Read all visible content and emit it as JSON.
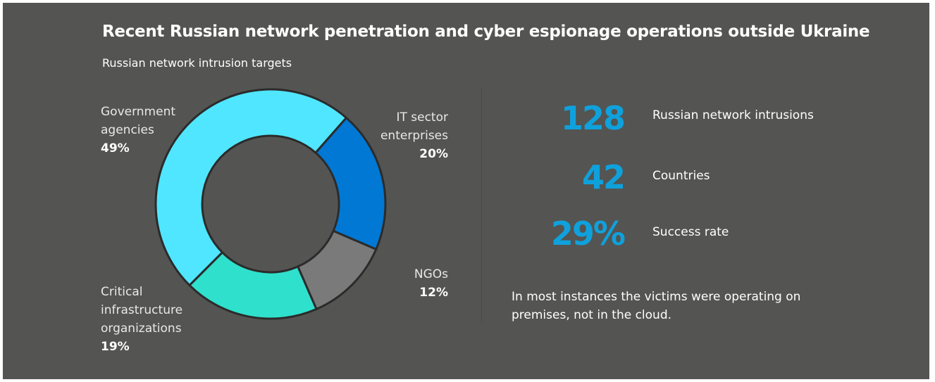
{
  "header": {
    "title": "Recent Russian network penetration and cyber espionage operations outside Ukraine",
    "subtitle": "Russian network intrusion targets"
  },
  "chart_data": {
    "type": "pie",
    "title": "Russian network intrusion targets",
    "categories": [
      "Government agencies",
      "IT sector enterprises",
      "NGOs",
      "Critical infrastructure organizations"
    ],
    "values": [
      49,
      20,
      12,
      19
    ],
    "labels": [
      {
        "lines": [
          "Government",
          "agencies"
        ],
        "pct": "49%"
      },
      {
        "lines": [
          "IT sector",
          "enterprises"
        ],
        "pct": "20%"
      },
      {
        "lines": [
          "NGOs"
        ],
        "pct": "12%"
      },
      {
        "lines": [
          "Critical",
          "infrastructure",
          "organizations"
        ],
        "pct": "19%"
      }
    ],
    "colors": [
      "#50e6ff",
      "#0078d4",
      "#7a7a7a",
      "#2fe0cc"
    ],
    "donut": true
  },
  "stats": [
    {
      "value": "128",
      "label": "Russian network intrusions"
    },
    {
      "value": "42",
      "label": "Countries"
    },
    {
      "value": "29%",
      "label": "Success rate"
    }
  ],
  "note": "In most instances the victims were operating on premises, not in the cloud.",
  "colors": {
    "background": "#545452",
    "accent": "#0fa1dc",
    "text": "#ffffff"
  }
}
